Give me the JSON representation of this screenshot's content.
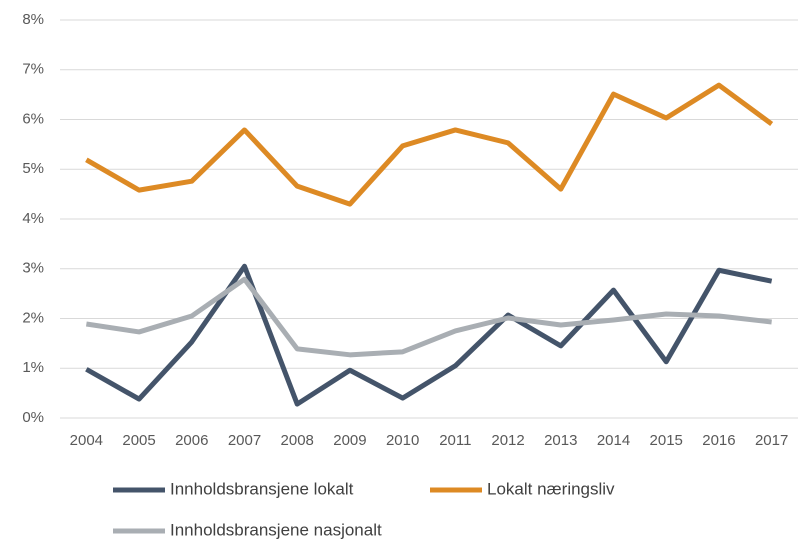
{
  "chart_data": {
    "type": "line",
    "categories": [
      "2004",
      "2005",
      "2006",
      "2007",
      "2008",
      "2009",
      "2010",
      "2011",
      "2012",
      "2013",
      "2014",
      "2015",
      "2016",
      "2017"
    ],
    "series": [
      {
        "name": "Innholdsbransjene lokalt",
        "color": "#44546a",
        "values": [
          0.98,
          0.38,
          1.53,
          3.05,
          0.28,
          0.96,
          0.4,
          1.05,
          2.07,
          1.45,
          2.57,
          1.13,
          2.97,
          2.75
        ]
      },
      {
        "name": "Lokalt næringsliv",
        "color": "#dd8a24",
        "values": [
          5.19,
          4.58,
          4.76,
          5.79,
          4.66,
          4.3,
          5.47,
          5.79,
          5.53,
          4.6,
          6.51,
          6.03,
          6.69,
          5.91
        ]
      },
      {
        "name": "Innholdsbransjene nasjonalt",
        "color": "#a9aeb3",
        "values": [
          1.89,
          1.73,
          2.05,
          2.79,
          1.39,
          1.27,
          1.33,
          1.75,
          2.01,
          1.87,
          1.97,
          2.09,
          2.05,
          1.93
        ]
      }
    ],
    "ylim": [
      0,
      8
    ],
    "yticks": [
      {
        "value": 0,
        "label": "0%"
      },
      {
        "value": 1,
        "label": "1%"
      },
      {
        "value": 2,
        "label": "2%"
      },
      {
        "value": 3,
        "label": "3%"
      },
      {
        "value": 4,
        "label": "4%"
      },
      {
        "value": 5,
        "label": "5%"
      },
      {
        "value": 6,
        "label": "6%"
      },
      {
        "value": 7,
        "label": "7%"
      },
      {
        "value": 8,
        "label": "8%"
      }
    ],
    "grid": true,
    "legend": "bottom"
  }
}
